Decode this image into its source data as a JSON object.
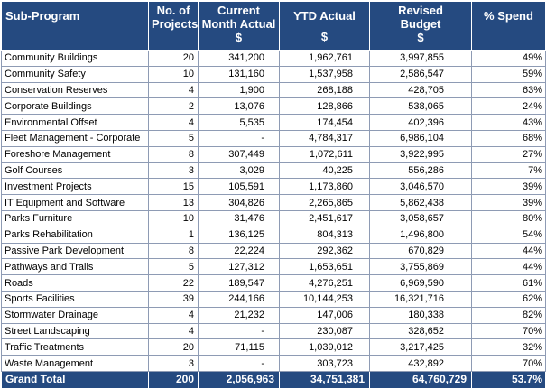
{
  "headers": {
    "sub_program": "Sub-Program",
    "projects": [
      "No. of",
      "Projects"
    ],
    "current_month": [
      "Current",
      "Month Actual",
      "$"
    ],
    "ytd": [
      "YTD Actual",
      "$"
    ],
    "revised_budget": [
      "Revised",
      "Budget",
      "$"
    ],
    "spend": "% Spend"
  },
  "rows": [
    {
      "name": "Community Buildings",
      "projects": "20",
      "current": "341,200",
      "ytd": "1,962,761",
      "budget": "3,997,855",
      "spend": "49%"
    },
    {
      "name": "Community Safety",
      "projects": "10",
      "current": "131,160",
      "ytd": "1,537,958",
      "budget": "2,586,547",
      "spend": "59%"
    },
    {
      "name": "Conservation Reserves",
      "projects": "4",
      "current": "1,900",
      "ytd": "268,188",
      "budget": "428,705",
      "spend": "63%"
    },
    {
      "name": "Corporate Buildings",
      "projects": "2",
      "current": "13,076",
      "ytd": "128,866",
      "budget": "538,065",
      "spend": "24%"
    },
    {
      "name": "Environmental Offset",
      "projects": "4",
      "current": "5,535",
      "ytd": "174,454",
      "budget": "402,396",
      "spend": "43%"
    },
    {
      "name": "Fleet Management - Corporate",
      "projects": "5",
      "current": "-",
      "ytd": "4,784,317",
      "budget": "6,986,104",
      "spend": "68%"
    },
    {
      "name": "Foreshore Management",
      "projects": "8",
      "current": "307,449",
      "ytd": "1,072,611",
      "budget": "3,922,995",
      "spend": "27%"
    },
    {
      "name": "Golf Courses",
      "projects": "3",
      "current": "3,029",
      "ytd": "40,225",
      "budget": "556,286",
      "spend": "7%"
    },
    {
      "name": "Investment Projects",
      "projects": "15",
      "current": "105,591",
      "ytd": "1,173,860",
      "budget": "3,046,570",
      "spend": "39%"
    },
    {
      "name": "IT Equipment and Software",
      "projects": "13",
      "current": "304,826",
      "ytd": "2,265,865",
      "budget": "5,862,438",
      "spend": "39%"
    },
    {
      "name": "Parks Furniture",
      "projects": "10",
      "current": "31,476",
      "ytd": "2,451,617",
      "budget": "3,058,657",
      "spend": "80%"
    },
    {
      "name": "Parks Rehabilitation",
      "projects": "1",
      "current": "136,125",
      "ytd": "804,313",
      "budget": "1,496,800",
      "spend": "54%"
    },
    {
      "name": "Passive Park Development",
      "projects": "8",
      "current": "22,224",
      "ytd": "292,362",
      "budget": "670,829",
      "spend": "44%"
    },
    {
      "name": "Pathways and Trails",
      "projects": "5",
      "current": "127,312",
      "ytd": "1,653,651",
      "budget": "3,755,869",
      "spend": "44%"
    },
    {
      "name": "Roads",
      "projects": "22",
      "current": "189,547",
      "ytd": "4,276,251",
      "budget": "6,969,590",
      "spend": "61%"
    },
    {
      "name": "Sports Facilities",
      "projects": "39",
      "current": "244,166",
      "ytd": "10,144,253",
      "budget": "16,321,716",
      "spend": "62%"
    },
    {
      "name": "Stormwater Drainage",
      "projects": "4",
      "current": "21,232",
      "ytd": "147,006",
      "budget": "180,338",
      "spend": "82%"
    },
    {
      "name": "Street Landscaping",
      "projects": "4",
      "current": "-",
      "ytd": "230,087",
      "budget": "328,652",
      "spend": "70%"
    },
    {
      "name": "Traffic Treatments",
      "projects": "20",
      "current": "71,115",
      "ytd": "1,039,012",
      "budget": "3,217,425",
      "spend": "32%"
    },
    {
      "name": "Waste Management",
      "projects": "3",
      "current": "-",
      "ytd": "303,723",
      "budget": "432,892",
      "spend": "70%"
    }
  ],
  "total": {
    "name": "Grand Total",
    "projects": "200",
    "current": "2,056,963",
    "ytd": "34,751,381",
    "budget": "64,760,729",
    "spend": "53.7%"
  },
  "colors": {
    "header_bg": "#254a80",
    "header_text": "#ffffff",
    "grid": "#8e9bb4"
  }
}
